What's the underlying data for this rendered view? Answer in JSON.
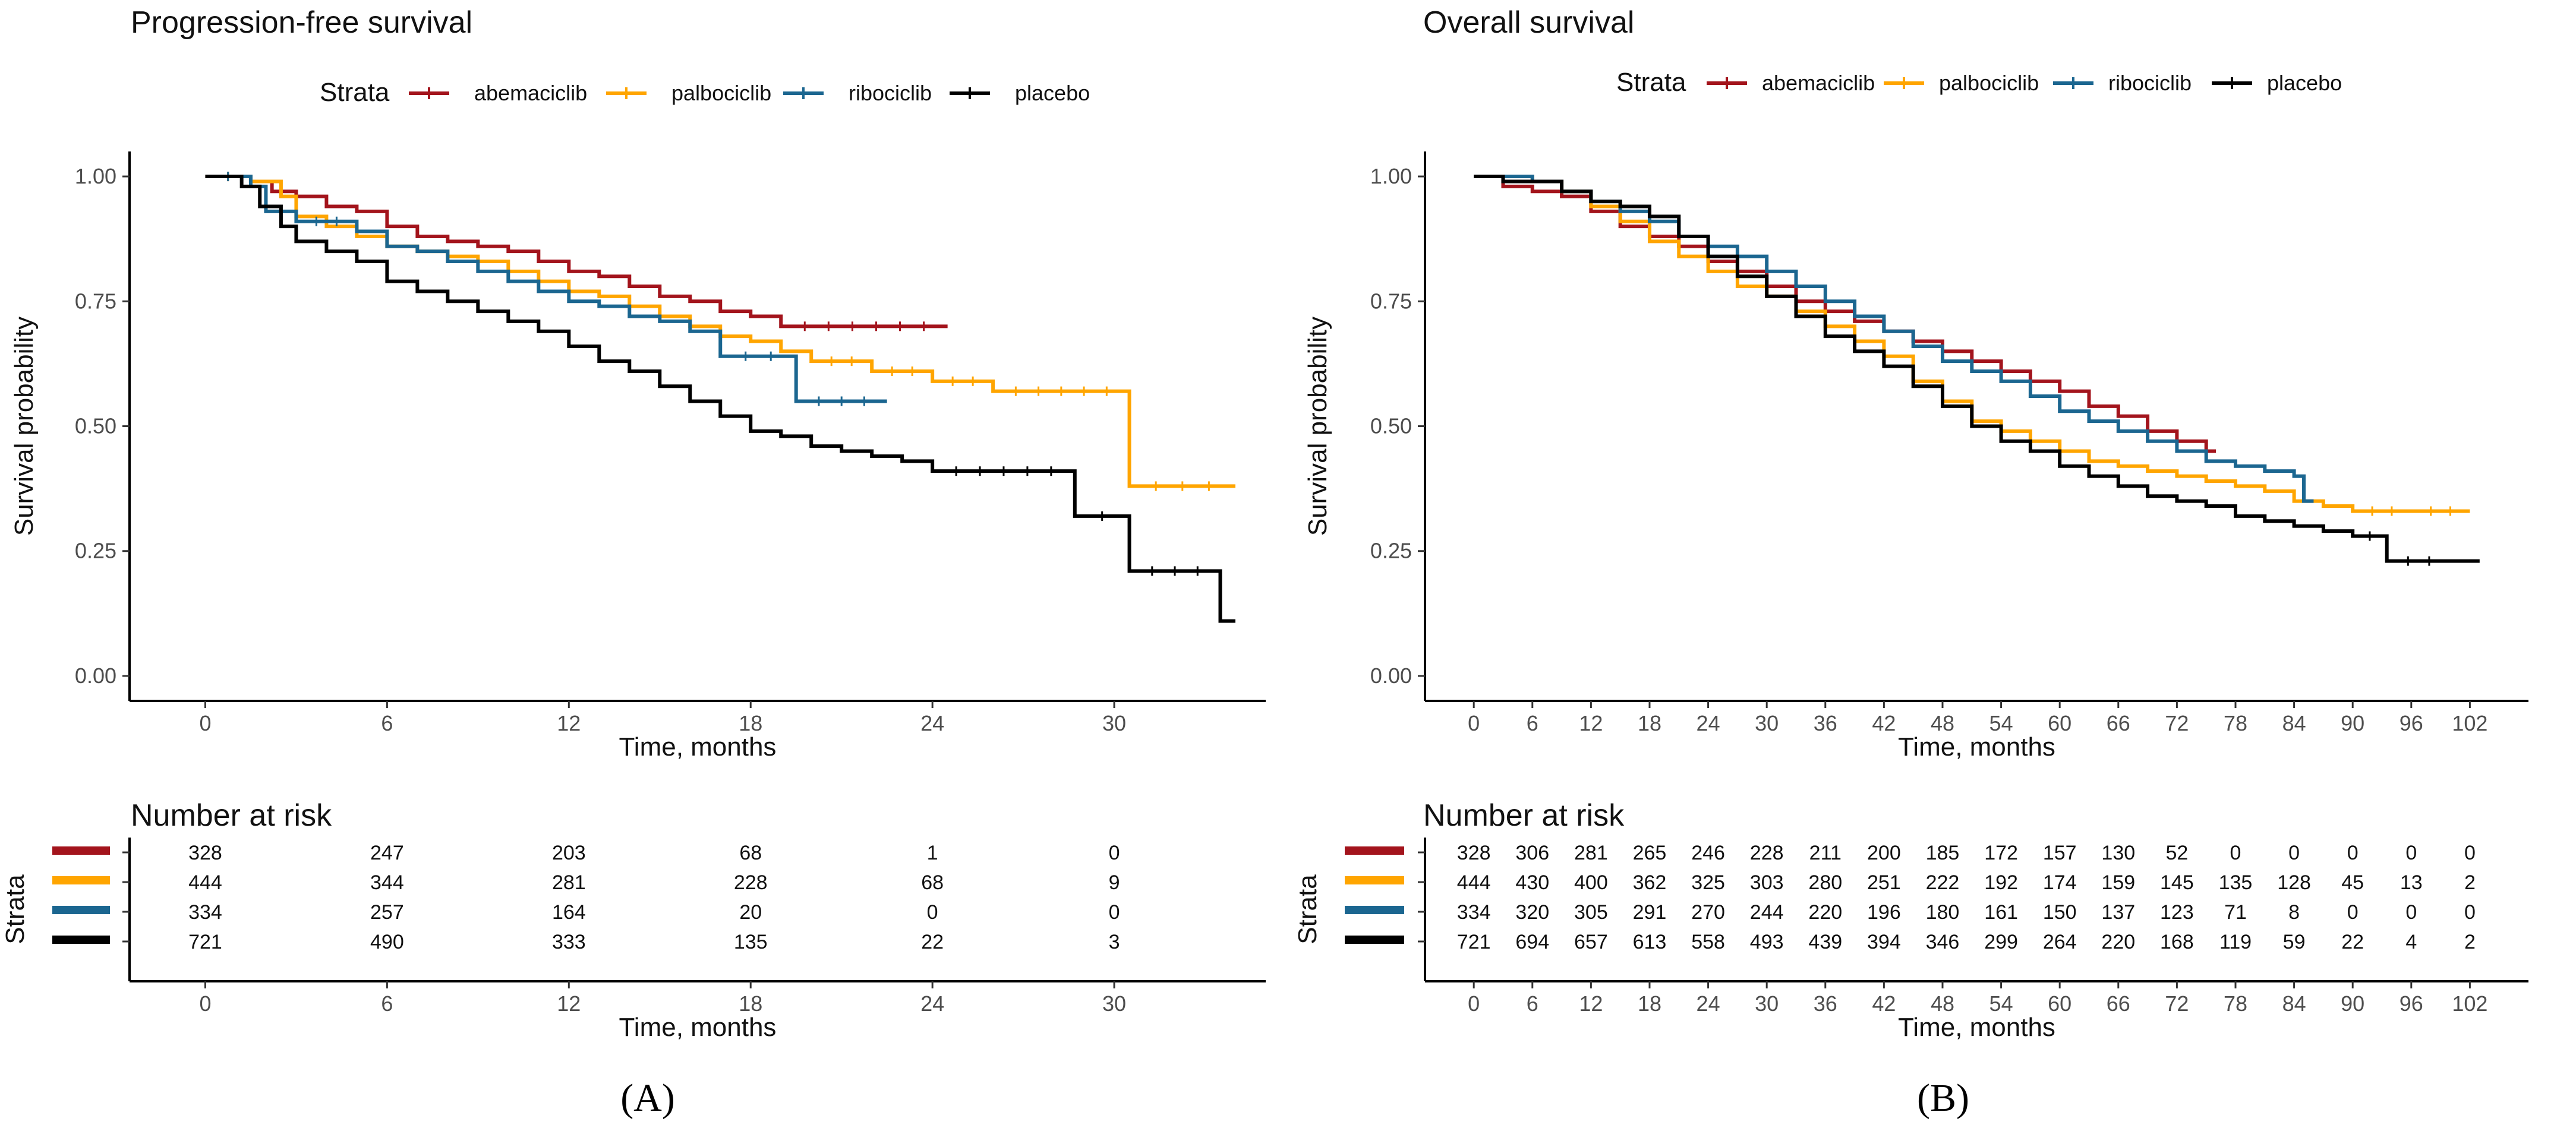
{
  "colors": {
    "abemaciclib": "#A3141C",
    "palbociclib": "#FFA500",
    "ribociclib": "#1B6690",
    "placebo": "#000000"
  },
  "chart_data": [
    {
      "type": "line",
      "title": "Progression-free survival",
      "panel_label": "(A)",
      "legend_title": "Strata",
      "legend_placement": "top",
      "xlabel": "Time, months",
      "ylabel": "Survival probability",
      "xlim": [
        -2.5,
        35
      ],
      "ylim": [
        -0.05,
        1.05
      ],
      "x_ticks": [
        0,
        6,
        12,
        18,
        24,
        30
      ],
      "y_ticks": [
        "0.00",
        "0.25",
        "0.50",
        "0.75",
        "1.00"
      ],
      "series": [
        {
          "name": "abemaciclib",
          "x": [
            0,
            1.5,
            2.2,
            3,
            4,
            5,
            6,
            7,
            8,
            9,
            10,
            11,
            12,
            13,
            14,
            15,
            16,
            17,
            18,
            19,
            24.5
          ],
          "y": [
            1.0,
            0.99,
            0.97,
            0.96,
            0.94,
            0.93,
            0.9,
            0.88,
            0.87,
            0.86,
            0.85,
            0.83,
            0.81,
            0.8,
            0.78,
            0.76,
            0.75,
            0.73,
            0.72,
            0.7,
            0.7
          ]
        },
        {
          "name": "palbociclib",
          "x": [
            0,
            1.5,
            2.5,
            3,
            4,
            5,
            6,
            7,
            8,
            9,
            10,
            11,
            12,
            13,
            14,
            15,
            16,
            17,
            18,
            19,
            20,
            22,
            24,
            26,
            30.5,
            34
          ],
          "y": [
            1.0,
            0.99,
            0.96,
            0.92,
            0.9,
            0.88,
            0.86,
            0.85,
            0.84,
            0.83,
            0.81,
            0.79,
            0.77,
            0.76,
            0.74,
            0.72,
            0.7,
            0.68,
            0.67,
            0.65,
            0.63,
            0.61,
            0.59,
            0.57,
            0.38,
            0.38
          ]
        },
        {
          "name": "ribociclib",
          "x": [
            0,
            1.5,
            2,
            3,
            5,
            6,
            7,
            8,
            9,
            10,
            11,
            12,
            13,
            14,
            15,
            16,
            17,
            19.5,
            22.5
          ],
          "y": [
            1.0,
            0.98,
            0.93,
            0.91,
            0.89,
            0.86,
            0.85,
            0.83,
            0.81,
            0.79,
            0.77,
            0.75,
            0.74,
            0.72,
            0.71,
            0.69,
            0.64,
            0.55,
            0.55
          ]
        },
        {
          "name": "placebo",
          "x": [
            0,
            1.2,
            1.8,
            2.5,
            3,
            4,
            5,
            6,
            7,
            8,
            9,
            10,
            11,
            12,
            13,
            14,
            15,
            16,
            17,
            18,
            19,
            20,
            21,
            22,
            23,
            24,
            28.7,
            30.5,
            33.5,
            34
          ],
          "y": [
            1.0,
            0.98,
            0.94,
            0.9,
            0.87,
            0.85,
            0.83,
            0.79,
            0.77,
            0.75,
            0.73,
            0.71,
            0.69,
            0.66,
            0.63,
            0.61,
            0.58,
            0.55,
            0.52,
            0.49,
            0.48,
            0.46,
            0.45,
            0.44,
            0.43,
            0.41,
            0.32,
            0.21,
            0.11,
            0.11
          ]
        }
      ],
      "risk_table": {
        "title": "Number at risk",
        "ylabel": "Strata",
        "xlabel": "Time, months",
        "times": [
          0,
          6,
          12,
          18,
          24,
          30
        ],
        "rows": [
          [
            328,
            247,
            203,
            68,
            1,
            0
          ],
          [
            444,
            344,
            281,
            228,
            68,
            9
          ],
          [
            334,
            257,
            164,
            20,
            0,
            0
          ],
          [
            721,
            490,
            333,
            135,
            22,
            3
          ]
        ]
      }
    },
    {
      "type": "line",
      "title": "Overall survival",
      "panel_label": "(B)",
      "legend_title": "Strata",
      "legend_placement": "top",
      "xlabel": "Time, months",
      "ylabel": "Survival probability",
      "xlim": [
        -5,
        108
      ],
      "ylim": [
        -0.05,
        1.05
      ],
      "x_ticks": [
        0,
        6,
        12,
        18,
        24,
        30,
        36,
        42,
        48,
        54,
        60,
        66,
        72,
        78,
        84,
        90,
        96,
        102
      ],
      "y_ticks": [
        "0.00",
        "0.25",
        "0.50",
        "0.75",
        "1.00"
      ],
      "series": [
        {
          "name": "abemaciclib",
          "x": [
            0,
            3,
            6,
            9,
            12,
            15,
            18,
            21,
            24,
            27,
            30,
            33,
            36,
            39,
            42,
            45,
            48,
            51,
            54,
            57,
            60,
            63,
            66,
            69,
            72,
            75,
            76
          ],
          "y": [
            1.0,
            0.98,
            0.97,
            0.96,
            0.93,
            0.9,
            0.88,
            0.86,
            0.83,
            0.81,
            0.78,
            0.75,
            0.73,
            0.71,
            0.69,
            0.67,
            0.65,
            0.63,
            0.61,
            0.59,
            0.57,
            0.54,
            0.52,
            0.49,
            0.47,
            0.45,
            0.45
          ]
        },
        {
          "name": "palbociclib",
          "x": [
            0,
            3,
            6,
            9,
            12,
            15,
            18,
            21,
            24,
            27,
            30,
            33,
            36,
            39,
            42,
            45,
            48,
            51,
            54,
            57,
            60,
            63,
            66,
            69,
            72,
            75,
            78,
            81,
            84,
            87,
            90,
            96,
            102
          ],
          "y": [
            1.0,
            1.0,
            0.99,
            0.97,
            0.94,
            0.91,
            0.87,
            0.84,
            0.81,
            0.78,
            0.76,
            0.73,
            0.7,
            0.67,
            0.64,
            0.59,
            0.55,
            0.51,
            0.49,
            0.47,
            0.45,
            0.43,
            0.42,
            0.41,
            0.4,
            0.39,
            0.38,
            0.37,
            0.35,
            0.34,
            0.33,
            0.33,
            0.33
          ]
        },
        {
          "name": "ribociclib",
          "x": [
            0,
            3,
            6,
            9,
            12,
            15,
            18,
            21,
            24,
            27,
            30,
            33,
            36,
            39,
            42,
            45,
            48,
            51,
            54,
            57,
            60,
            63,
            66,
            69,
            72,
            75,
            78,
            81,
            84,
            85,
            86
          ],
          "y": [
            1.0,
            1.0,
            0.99,
            0.97,
            0.95,
            0.93,
            0.91,
            0.88,
            0.86,
            0.84,
            0.81,
            0.78,
            0.75,
            0.72,
            0.69,
            0.66,
            0.63,
            0.61,
            0.59,
            0.56,
            0.53,
            0.51,
            0.49,
            0.47,
            0.45,
            0.43,
            0.42,
            0.41,
            0.4,
            0.35,
            0.35
          ]
        },
        {
          "name": "placebo",
          "x": [
            0,
            3,
            6,
            9,
            12,
            15,
            18,
            21,
            24,
            27,
            30,
            33,
            36,
            39,
            42,
            45,
            48,
            51,
            54,
            57,
            60,
            63,
            66,
            69,
            72,
            75,
            78,
            81,
            84,
            87,
            90,
            93.5,
            100,
            103
          ],
          "y": [
            1.0,
            0.99,
            0.99,
            0.97,
            0.95,
            0.94,
            0.92,
            0.88,
            0.84,
            0.8,
            0.76,
            0.72,
            0.68,
            0.65,
            0.62,
            0.58,
            0.54,
            0.5,
            0.47,
            0.45,
            0.42,
            0.4,
            0.38,
            0.36,
            0.35,
            0.34,
            0.32,
            0.31,
            0.3,
            0.29,
            0.28,
            0.23,
            0.23,
            0.23
          ]
        }
      ],
      "risk_table": {
        "title": "Number at risk",
        "ylabel": "Strata",
        "xlabel": "Time, months",
        "times": [
          0,
          6,
          12,
          18,
          24,
          30,
          36,
          42,
          48,
          54,
          60,
          66,
          72,
          78,
          84,
          90,
          96,
          102
        ],
        "rows": [
          [
            328,
            306,
            281,
            265,
            246,
            228,
            211,
            200,
            185,
            172,
            157,
            130,
            52,
            0,
            0,
            0,
            0,
            0
          ],
          [
            444,
            430,
            400,
            362,
            325,
            303,
            280,
            251,
            222,
            192,
            174,
            159,
            145,
            135,
            128,
            45,
            13,
            2
          ],
          [
            334,
            320,
            305,
            291,
            270,
            244,
            220,
            196,
            180,
            161,
            150,
            137,
            123,
            71,
            8,
            0,
            0,
            0
          ],
          [
            721,
            694,
            657,
            613,
            558,
            493,
            439,
            394,
            346,
            299,
            264,
            220,
            168,
            119,
            59,
            22,
            4,
            2
          ]
        ]
      }
    }
  ]
}
